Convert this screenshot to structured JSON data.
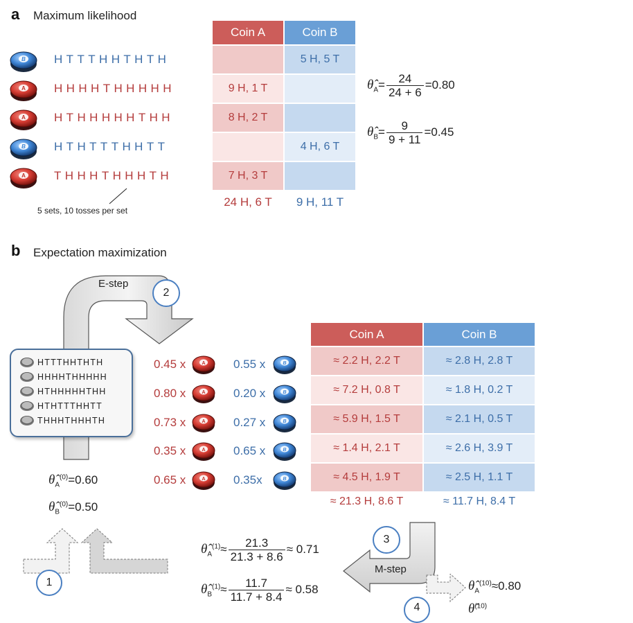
{
  "section_a": {
    "letter": "a",
    "title": "Maximum likelihood",
    "coin_a_header": "Coin A",
    "coin_b_header": "Coin B",
    "rows": [
      {
        "coin": "B",
        "sequence": "HTTTHHTHTH",
        "coin_a": "",
        "coin_b": "5 H, 5 T"
      },
      {
        "coin": "A",
        "sequence": "HHHHTHHHHH",
        "coin_a": "9 H, 1 T",
        "coin_b": ""
      },
      {
        "coin": "A",
        "sequence": "HTHHHHHTHH",
        "coin_a": "8 H, 2 T",
        "coin_b": ""
      },
      {
        "coin": "B",
        "sequence": "HTHTTTHHTT",
        "coin_a": "",
        "coin_b": "4 H, 6 T"
      },
      {
        "coin": "A",
        "sequence": "THHHTHHHTH",
        "coin_a": "7 H, 3 T",
        "coin_b": ""
      }
    ],
    "total_a": "24 H, 6 T",
    "total_b": "9 H, 11 T",
    "note": "5 sets, 10 tosses per set",
    "theta_a": {
      "num": "24",
      "den": "24 + 6",
      "value": "0.80"
    },
    "theta_b": {
      "num": "9",
      "den": "9 + 11",
      "value": "0.45"
    }
  },
  "section_b": {
    "letter": "b",
    "title": "Expectation maximization",
    "estep_label": "E-step",
    "mstep_label": "M-step",
    "step_numbers": [
      "1",
      "2",
      "3",
      "4"
    ],
    "small_sequences": [
      "HTTTHHTHTH",
      "HHHHTHHHHH",
      "HTHHHHHTHH",
      "HTHTTTHHTT",
      "THHHTHHHTH"
    ],
    "coin_a_header": "Coin A",
    "coin_b_header": "Coin B",
    "rows": [
      {
        "wa": "0.45 x",
        "wb": "0.55 x",
        "coin_a": "≈ 2.2 H, 2.2 T",
        "coin_b": "≈ 2.8 H, 2.8 T"
      },
      {
        "wa": "0.80 x",
        "wb": "0.20 x",
        "coin_a": "≈ 7.2 H, 0.8 T",
        "coin_b": "≈ 1.8 H, 0.2 T"
      },
      {
        "wa": "0.73 x",
        "wb": "0.27 x",
        "coin_a": "≈ 5.9 H, 1.5 T",
        "coin_b": "≈ 2.1 H, 0.5 T"
      },
      {
        "wa": "0.35 x",
        "wb": "0.65 x",
        "coin_a": "≈ 1.4 H, 2.1 T",
        "coin_b": "≈ 2.6 H, 3.9 T"
      },
      {
        "wa": "0.65 x",
        "wb": "0.35x",
        "coin_a": "≈ 4.5 H, 1.9 T",
        "coin_b": "≈ 2.5 H, 1.1 T"
      }
    ],
    "total_a": "≈ 21.3 H, 8.6 T",
    "total_b": "≈ 11.7 H, 8.4 T",
    "init": {
      "a_sup": "(0)",
      "a_value": "=0.60",
      "b_sup": "(0)",
      "b_value": "=0.50"
    },
    "update": {
      "a_sup": "(1)",
      "a_num": "21.3",
      "a_den": "21.3 + 8.6",
      "a_value": "≈ 0.71",
      "b_sup": "(1)",
      "b_num": "11.7",
      "b_den": "11.7 + 8.4",
      "b_value": "≈ 0.58"
    },
    "final": {
      "a_sup": "(10)",
      "a_value": "≈0.80",
      "b_sup": "(10)"
    }
  },
  "symbols": {
    "theta": "θ̂",
    "approx": "≈",
    "equals": "=",
    "coin_a_letter": "A",
    "coin_b_letter": "B",
    "sub_a": "A",
    "sub_b": "B"
  },
  "colors": {
    "red": "#b43c3c",
    "blue": "#3d6ea8",
    "header_red": "#cc5d5a",
    "header_blue": "#6a9fd6"
  }
}
